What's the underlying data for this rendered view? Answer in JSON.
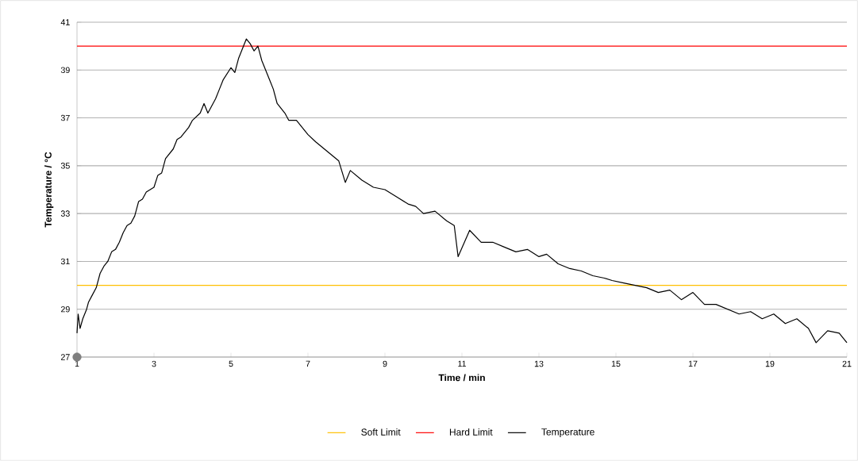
{
  "chart_data": {
    "type": "line",
    "xlabel": "Time  / min",
    "ylabel": "Temperature  / °C",
    "xlim": [
      1,
      21
    ],
    "ylim": [
      27,
      41
    ],
    "xticks": [
      1,
      3,
      5,
      7,
      9,
      11,
      13,
      15,
      17,
      19,
      21
    ],
    "yticks": [
      27,
      29,
      31,
      33,
      35,
      37,
      39,
      41
    ],
    "grid": "y",
    "legend": "bottom",
    "series": [
      {
        "name": "Soft Limit",
        "color": "#ffc000",
        "x": [
          1,
          21
        ],
        "values": [
          30,
          30
        ]
      },
      {
        "name": "Hard Limit",
        "color": "#ff0000",
        "x": [
          1,
          21
        ],
        "values": [
          40,
          40
        ]
      },
      {
        "name": "Temperature",
        "color": "#000000",
        "x": [
          1.0,
          1.03,
          1.08,
          1.15,
          1.25,
          1.3,
          1.4,
          1.5,
          1.6,
          1.7,
          1.8,
          1.9,
          2.0,
          2.1,
          2.2,
          2.3,
          2.4,
          2.5,
          2.6,
          2.7,
          2.8,
          3.0,
          3.1,
          3.2,
          3.3,
          3.5,
          3.6,
          3.7,
          3.9,
          4.0,
          4.2,
          4.3,
          4.4,
          4.6,
          4.7,
          4.8,
          5.0,
          5.1,
          5.2,
          5.3,
          5.4,
          5.5,
          5.6,
          5.7,
          5.8,
          6.0,
          6.1,
          6.2,
          6.4,
          6.5,
          6.7,
          7.0,
          7.2,
          7.5,
          7.8,
          7.97,
          8.1,
          8.4,
          8.7,
          9.0,
          9.3,
          9.6,
          9.8,
          10.0,
          10.3,
          10.6,
          10.8,
          10.9,
          11.2,
          11.5,
          11.8,
          12.1,
          12.4,
          12.7,
          13.0,
          13.2,
          13.5,
          13.8,
          14.1,
          14.4,
          14.7,
          14.9,
          15.2,
          15.5,
          15.8,
          16.1,
          16.4,
          16.7,
          17.0,
          17.3,
          17.6,
          17.9,
          18.2,
          18.5,
          18.8,
          19.1,
          19.4,
          19.7,
          20.0,
          20.2,
          20.5,
          20.8,
          21.0
        ],
        "values": [
          28.0,
          28.8,
          28.2,
          28.6,
          29.0,
          29.3,
          29.6,
          29.9,
          30.5,
          30.8,
          31.0,
          31.4,
          31.5,
          31.8,
          32.2,
          32.5,
          32.6,
          32.9,
          33.5,
          33.6,
          33.9,
          34.1,
          34.6,
          34.7,
          35.3,
          35.7,
          36.1,
          36.2,
          36.6,
          36.9,
          37.2,
          37.6,
          37.2,
          37.8,
          38.2,
          38.6,
          39.1,
          38.9,
          39.5,
          39.9,
          40.3,
          40.1,
          39.8,
          40.0,
          39.4,
          38.6,
          38.2,
          37.6,
          37.2,
          36.9,
          36.9,
          36.3,
          36.0,
          35.6,
          35.2,
          34.3,
          34.8,
          34.4,
          34.1,
          34.0,
          33.7,
          33.4,
          33.3,
          33.0,
          33.1,
          32.7,
          32.5,
          31.2,
          32.3,
          31.8,
          31.8,
          31.6,
          31.4,
          31.5,
          31.2,
          31.3,
          30.9,
          30.7,
          30.6,
          30.4,
          30.3,
          30.2,
          30.1,
          30.0,
          29.9,
          29.7,
          29.8,
          29.4,
          29.7,
          29.2,
          29.2,
          29.0,
          28.8,
          28.9,
          28.6,
          28.8,
          28.4,
          28.6,
          28.2,
          27.6,
          28.1,
          28.0,
          27.6
        ]
      },
      {
        "color": "#7f7f7f",
        "type": "scatter",
        "marker": "circle",
        "x": [
          1
        ],
        "values": [
          27
        ]
      }
    ]
  }
}
